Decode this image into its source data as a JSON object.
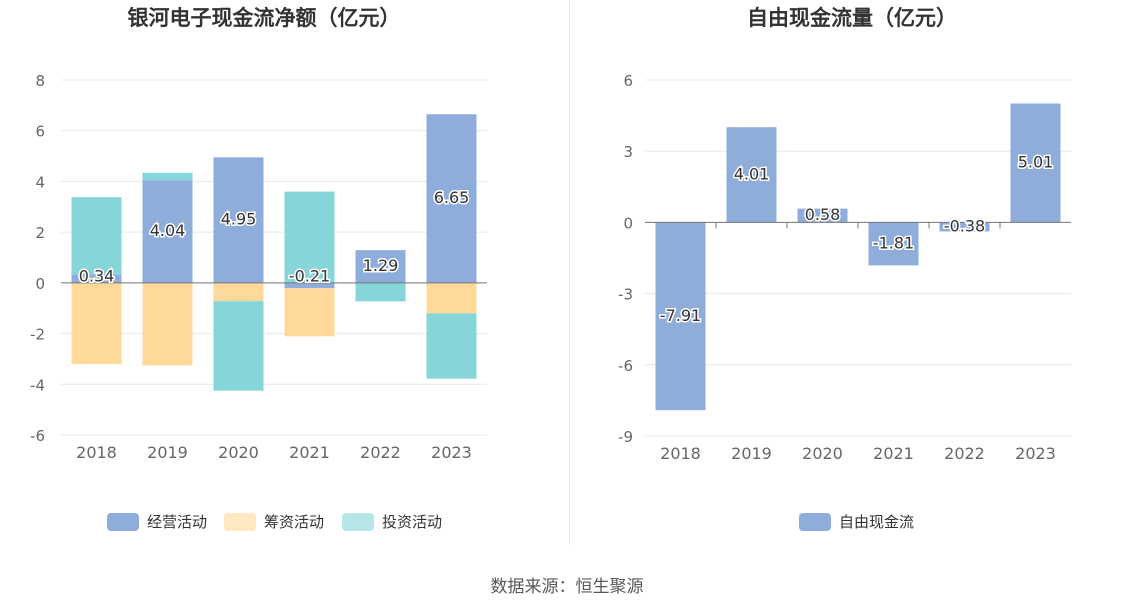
{
  "charts": [
    {
      "type": "bar",
      "title": "银河电子现金流净额（亿元）",
      "categories": [
        "2018",
        "2019",
        "2020",
        "2021",
        "2022",
        "2023"
      ],
      "yticks": [
        "8",
        "6",
        "4",
        "2",
        "0",
        "-2",
        "-4",
        "-6"
      ],
      "ylim": [
        -6,
        8
      ],
      "stacked": true,
      "grid": true,
      "legend_position": "bottom",
      "series": [
        {
          "name": "经营活动",
          "color": "#8eaddb",
          "values": [
            0.34,
            4.04,
            4.95,
            -0.21,
            1.29,
            6.65
          ]
        },
        {
          "name": "筹资活动",
          "color": "#ffd99a",
          "values": [
            -3.2,
            -3.25,
            -0.72,
            -1.9,
            0,
            -1.2
          ]
        },
        {
          "name": "投资活动",
          "color": "#86d5d8",
          "values": [
            3.04,
            0.3,
            -3.53,
            3.6,
            -0.73,
            -2.58
          ]
        }
      ],
      "data_labels": [
        "0.34",
        "4.04",
        "4.95",
        "-0.21",
        "1.29",
        "6.65"
      ]
    },
    {
      "type": "bar",
      "title": "自由现金流量（亿元）",
      "categories": [
        "2018",
        "2019",
        "2020",
        "2021",
        "2022",
        "2023"
      ],
      "yticks": [
        "6",
        "3",
        "0",
        "-3",
        "-6",
        "-9"
      ],
      "ylim": [
        -9,
        6
      ],
      "grid": true,
      "legend_position": "bottom",
      "series": [
        {
          "name": "自由现金流",
          "color": "#8eaddb",
          "values": [
            -7.91,
            4.01,
            0.58,
            -1.81,
            -0.38,
            5.01
          ]
        }
      ],
      "data_labels": [
        "-7.91",
        "4.01",
        "0.58",
        "-1.81",
        "-0.38",
        "5.01"
      ]
    }
  ],
  "chart_data": [
    {
      "type": "bar",
      "title": "银河电子现金流净额（亿元）",
      "categories": [
        "2018",
        "2019",
        "2020",
        "2021",
        "2022",
        "2023"
      ],
      "series": [
        {
          "name": "经营活动",
          "values": [
            0.34,
            4.04,
            4.95,
            -0.21,
            1.29,
            6.65
          ]
        },
        {
          "name": "筹资活动",
          "values": [
            -3.2,
            -3.25,
            -0.72,
            -1.9,
            0,
            -1.2
          ]
        },
        {
          "name": "投资活动",
          "values": [
            3.04,
            0.3,
            -3.53,
            3.6,
            -0.73,
            -2.58
          ]
        }
      ],
      "xlabel": "",
      "ylabel": "",
      "ylim": [
        -6,
        8
      ]
    },
    {
      "type": "bar",
      "title": "自由现金流量（亿元）",
      "categories": [
        "2018",
        "2019",
        "2020",
        "2021",
        "2022",
        "2023"
      ],
      "series": [
        {
          "name": "自由现金流",
          "values": [
            -7.91,
            4.01,
            0.58,
            -1.81,
            -0.38,
            5.01
          ]
        }
      ],
      "xlabel": "",
      "ylabel": "",
      "ylim": [
        -9,
        6
      ]
    }
  ],
  "footer": {
    "source": "数据来源：恒生聚源"
  }
}
